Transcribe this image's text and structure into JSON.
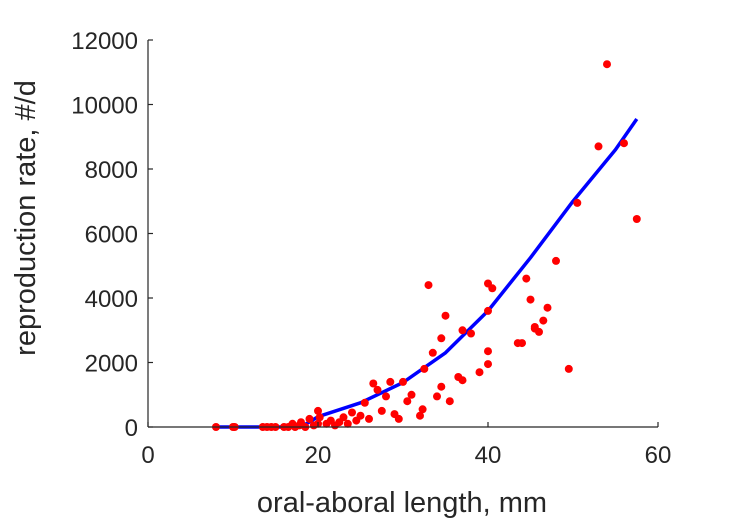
{
  "chart_data": {
    "type": "scatter",
    "title": "",
    "xlabel": "oral-aboral length, mm",
    "ylabel": "reproduction rate, #/d",
    "xlim": [
      0,
      60
    ],
    "ylim": [
      0,
      12000
    ],
    "xticks": [
      "0",
      "20",
      "40",
      "60"
    ],
    "yticks": [
      "0",
      "2000",
      "4000",
      "6000",
      "8000",
      "10000",
      "12000"
    ],
    "grid": false,
    "legend": "none",
    "colors": {
      "points": "#ff0000",
      "fit": "#0000ff",
      "axes": "#262626"
    },
    "series": [
      {
        "type": "scatter",
        "points": [
          [
            8,
            0
          ],
          [
            10,
            0
          ],
          [
            10.2,
            0
          ],
          [
            13.5,
            0
          ],
          [
            14,
            0
          ],
          [
            14.5,
            0
          ],
          [
            15,
            0
          ],
          [
            16,
            0
          ],
          [
            16.5,
            0
          ],
          [
            17,
            100
          ],
          [
            17.3,
            0
          ],
          [
            17.8,
            50
          ],
          [
            18,
            150
          ],
          [
            18.5,
            0
          ],
          [
            19,
            250
          ],
          [
            19.5,
            50
          ],
          [
            20,
            100
          ],
          [
            20,
            500
          ],
          [
            20.2,
            300
          ],
          [
            21,
            100
          ],
          [
            21.5,
            200
          ],
          [
            22,
            50
          ],
          [
            22.5,
            150
          ],
          [
            23,
            300
          ],
          [
            23.5,
            100
          ],
          [
            24,
            450
          ],
          [
            24.5,
            200
          ],
          [
            25,
            350
          ],
          [
            25.5,
            750
          ],
          [
            26,
            250
          ],
          [
            26.5,
            1350
          ],
          [
            27,
            1150
          ],
          [
            27.5,
            500
          ],
          [
            28,
            950
          ],
          [
            28.5,
            1400
          ],
          [
            29,
            400
          ],
          [
            29.5,
            250
          ],
          [
            30,
            1400
          ],
          [
            30.5,
            800
          ],
          [
            31,
            1000
          ],
          [
            32,
            350
          ],
          [
            32.3,
            550
          ],
          [
            32.5,
            1800
          ],
          [
            33,
            4400
          ],
          [
            33.5,
            2300
          ],
          [
            34,
            950
          ],
          [
            34.5,
            1250
          ],
          [
            34.5,
            2750
          ],
          [
            35,
            3450
          ],
          [
            35.5,
            800
          ],
          [
            36.5,
            1550
          ],
          [
            37,
            1450
          ],
          [
            37,
            3000
          ],
          [
            38,
            2900
          ],
          [
            39,
            1700
          ],
          [
            40,
            4450
          ],
          [
            40,
            3600
          ],
          [
            40,
            2350
          ],
          [
            40,
            1950
          ],
          [
            40.5,
            4300
          ],
          [
            43.5,
            2600
          ],
          [
            44,
            2600
          ],
          [
            44.5,
            4600
          ],
          [
            45,
            3950
          ],
          [
            45.5,
            3050
          ],
          [
            45.5,
            3100
          ],
          [
            46,
            2950
          ],
          [
            46.5,
            3300
          ],
          [
            47,
            3700
          ],
          [
            48,
            5150
          ],
          [
            49.5,
            1800
          ],
          [
            50.5,
            6950
          ],
          [
            53,
            8700
          ],
          [
            54,
            11250
          ],
          [
            56,
            8800
          ],
          [
            57.5,
            6450
          ]
        ]
      },
      {
        "type": "line",
        "points": [
          [
            8,
            0
          ],
          [
            10,
            0
          ],
          [
            14,
            0
          ],
          [
            18,
            0
          ],
          [
            20,
            320
          ],
          [
            25,
            750
          ],
          [
            30,
            1380
          ],
          [
            35,
            2300
          ],
          [
            40,
            3600
          ],
          [
            45,
            5250
          ],
          [
            50,
            7000
          ],
          [
            55,
            8600
          ],
          [
            57.5,
            9550
          ]
        ]
      }
    ]
  }
}
